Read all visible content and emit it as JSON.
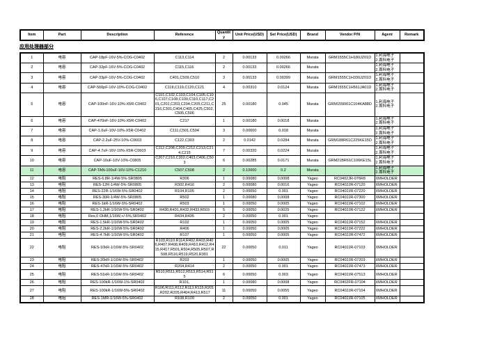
{
  "section_title": "应用处理器部分",
  "colors": {
    "row_highlight": "#c6efce",
    "grid_line": "#000000"
  },
  "header": {
    "columns": [
      "Item",
      "Part",
      "Description",
      "Reference",
      "Quantity",
      "Unit Price(USD)",
      "Set Price(USD)",
      "Brand",
      "Vendor P/N",
      "Agent",
      "Remark"
    ]
  },
  "rows": [
    {
      "item": "1",
      "part": "电容",
      "description": "CAP-18pF-16V-5%-COG-C0402",
      "reference": "C113,C114",
      "quantity": "2",
      "unit_price": "0.00133",
      "set_price": "0.00266",
      "brand": "Murata",
      "vendor_pn": "GRM1555C1H180JZ01D",
      "agent": "1.利海电子\n2.首科电子",
      "remark": "",
      "highlight": false
    },
    {
      "item": "2",
      "part": "电容",
      "description": "CAP-32pF-16V-5%-COG-C0402",
      "reference": "C115,C116",
      "quantity": "2",
      "unit_price": "0.00133",
      "set_price": "0.00266",
      "brand": "Murata",
      "vendor_pn": "",
      "agent": "1.利海电子\n2.首科电子",
      "remark": "",
      "highlight": false
    },
    {
      "item": "3",
      "part": "电容",
      "description": "CAP-33pF-16V-5%-COG-C0402",
      "reference": "C401,C509,C510",
      "quantity": "3",
      "unit_price": "0.00133",
      "set_price": "0.00399",
      "brand": "Murata",
      "vendor_pn": "GRM1555C1H330JZ01D",
      "agent": "1.利海电子\n2.首科电子",
      "remark": "",
      "highlight": false
    },
    {
      "item": "4",
      "part": "电容",
      "description": "CAP-560pF-16V-10%-COG-C0402",
      "reference": "C118,C119,C120,C121",
      "quantity": "4",
      "unit_price": "0.00310",
      "set_price": "0.0124",
      "brand": "Murata",
      "vendor_pn": "GRM1555C1H561JA01D",
      "agent": "1.利海电子\n2.首科电子",
      "remark": "",
      "highlight": false
    },
    {
      "item": "5",
      "part": "电容",
      "description": "CAP-100nF-16V-10%-X5R-C0402",
      "reference": "C101,C102,C103,C104,C105,C106,C107,C108,C109,C110,C117,C201,C202,C203,C204,C205,C211,C216,C301,C404,C405,C425,C502,C505,C506",
      "quantity": "25",
      "unit_price": "0.00180",
      "set_price": "0.045",
      "brand": "Murata",
      "vendor_pn": "GRM155R61C104KA88D",
      "agent": "1.利海电子\n2.首科电子",
      "remark": "",
      "highlight": false
    },
    {
      "item": "6",
      "part": "电容",
      "description": "CAP-470nF-16V-10%-X5R-C0402",
      "reference": "C217",
      "quantity": "1",
      "unit_price": "0.00180",
      "set_price": "0.0018",
      "brand": "Murata",
      "vendor_pn": "",
      "agent": "1.利海电子\n2.首科电子",
      "remark": "",
      "highlight": false
    },
    {
      "item": "7",
      "part": "电容",
      "description": "CAP-1.0uF-10V-10%-X5R-C0402",
      "reference": "C111,C501,C504",
      "quantity": "3",
      "unit_price": "0.00600",
      "set_price": "0.018",
      "brand": "Murata",
      "vendor_pn": "",
      "agent": "1.利海电子\n2.首科电子",
      "remark": "",
      "highlight": false
    },
    {
      "item": "8",
      "part": "电容",
      "description": "CAP-2.2uF-25V-10%-C0603",
      "reference": "C122,C303",
      "quantity": "2",
      "unit_price": "0.0142",
      "set_price": "0.0284",
      "brand": "Murata",
      "vendor_pn": "GRM188R61C225KE15D",
      "agent": "1.利海电子\n2.首科电子",
      "remark": "",
      "highlight": false
    },
    {
      "item": "9",
      "part": "电容",
      "description": "CAP-4.7uF-16V-10%-X5R-C0603",
      "reference": "C112,C208,C209,C212,C213,C214,C215",
      "quantity": "7",
      "unit_price": "0.00320",
      "set_price": "0.0224",
      "brand": "Murata",
      "vendor_pn": "",
      "agent": "1.利海电子\n2.首科电子",
      "remark": "",
      "highlight": false
    },
    {
      "item": "10",
      "part": "电容",
      "description": "CAP-10uF-10V-10%-C0805",
      "reference": "C207,C210,C302,C403,C406,C503",
      "quantity": "6",
      "unit_price": "0.00285",
      "set_price": "0.0171",
      "brand": "Murata",
      "vendor_pn": "GRM21BR61C106KE15L",
      "agent": "1.利海电子\n2.首科电子",
      "remark": "",
      "highlight": false
    },
    {
      "item": "11",
      "part": "电容",
      "description": "CAP-TAN-100uF-16V-10%-C1210",
      "reference": "C507,C508",
      "quantity": "2",
      "unit_price": "0.10000",
      "set_price": "0.2",
      "brand": "Murata",
      "vendor_pn": "",
      "agent": "1.利海电子\n2.首科电子",
      "remark": "",
      "highlight": true
    },
    {
      "item": "12",
      "part": "电阻",
      "description": "RES-6.8R-1/4W-5%-SR0805",
      "reference": "R306",
      "quantity": "1",
      "unit_price": "0.00080",
      "set_price": "0.0008",
      "brand": "Yageo",
      "vendor_pn": "RC0402JR-076R8",
      "agent": "XMHOLDER",
      "remark": "",
      "highlight": false
    },
    {
      "item": "13",
      "part": "电阻",
      "description": "RES-12R-1/4W-5%-SR0805",
      "reference": "R302,R416",
      "quantity": "2",
      "unit_price": "0.00080",
      "set_price": "0.0016",
      "brand": "Yageo",
      "vendor_pn": "RC0402JR-07120",
      "agent": "XMHOLDER",
      "remark": "",
      "highlight": false
    },
    {
      "item": "14",
      "part": "电阻",
      "description": "RES-22R-1/16W-5%-SR0402",
      "reference": "R104,R105",
      "quantity": "2",
      "unit_price": "0.00050",
      "set_price": "0.001",
      "brand": "Yageo",
      "vendor_pn": "RC0402JR-07220",
      "agent": "XMHOLDER",
      "remark": "",
      "highlight": false
    },
    {
      "item": "15",
      "part": "电阻",
      "description": "RES-30R-1/4W-5%-SR0805",
      "reference": "R502",
      "quantity": "1",
      "unit_price": "0.00080",
      "set_price": "0.0008",
      "brand": "Yageo",
      "vendor_pn": "RC0402JR-07300",
      "agent": "XMHOLDER",
      "remark": "",
      "highlight": false
    },
    {
      "item": "16",
      "part": "电阻",
      "description": "RES-1kR-1/16W-5%-SR0402",
      "reference": "R503",
      "quantity": "1",
      "unit_price": "0.00050",
      "set_price": "0.0005",
      "brand": "Yageo",
      "vendor_pn": "RC0402JR-07102",
      "agent": "XMHOLDER",
      "remark": "",
      "highlight": false
    },
    {
      "item": "17",
      "part": "电阻",
      "description": "RES-1.2kR-1/16W-5%-SR0402",
      "reference": "R430,R431,R432,R433,R503",
      "quantity": "5",
      "unit_price": "0.00050",
      "set_price": "0.0025",
      "brand": "Yageo",
      "vendor_pn": "RC0402JR-07122",
      "agent": "XMHOLDER",
      "remark": "",
      "highlight": false
    },
    {
      "item": "18",
      "part": "电阻",
      "description": "Res,0 OHM,1/16W,+/-5%,SR0402",
      "reference": "R434,R435",
      "quantity": "2",
      "unit_price": "0.00050",
      "set_price": "0.001",
      "brand": "Yageo",
      "vendor_pn": "",
      "agent": "",
      "remark": "",
      "highlight": false
    },
    {
      "item": "19",
      "part": "电阻",
      "description": "RES-1.5kR-1/16W-5%-SR0402",
      "reference": "R102",
      "quantity": "1",
      "unit_price": "0.00050",
      "set_price": "0.0005",
      "brand": "Yageo",
      "vendor_pn": "RC0402JR-07152",
      "agent": "XMHOLDER",
      "remark": "",
      "highlight": false
    },
    {
      "item": "20",
      "part": "电阻",
      "description": "RES-2.2kR-1/16W-5%-SR0402",
      "reference": "R406",
      "quantity": "1",
      "unit_price": "0.00050",
      "set_price": "0.0005",
      "brand": "Yageo",
      "vendor_pn": "RC0402JR-07222",
      "agent": "XMHOLDER",
      "remark": "",
      "highlight": false
    },
    {
      "item": "21",
      "part": "电阻",
      "description": "RES-4.7kR-1/16W-5%-SR0402",
      "reference": "R107",
      "quantity": "1",
      "unit_price": "0.00050",
      "set_price": "0.0005",
      "brand": "Yageo",
      "vendor_pn": "RC0402JR-07472",
      "agent": "XMHOLDER",
      "remark": "",
      "highlight": false
    },
    {
      "item": "22",
      "part": "电阻",
      "description": "RES-10kR-1/16W-5%-SR0402",
      "reference": "R103,R110,R114,R402,R403,R406,R407,R408,R409,R410,R412,R415,R417,R501,R504,R505,R507,R508,R516,R519,R520,R301",
      "quantity": "22",
      "unit_price": "0.00050",
      "set_price": "0.011",
      "brand": "Yageo",
      "vendor_pn": "RC0402JR-07103",
      "agent": "XMHOLDER",
      "remark": "",
      "highlight": false
    },
    {
      "item": "23",
      "part": "电阻",
      "description": "RES-20kR-1/16W-5%-SR0402",
      "reference": "R203",
      "quantity": "1",
      "unit_price": "0.00050",
      "set_price": "0.0005",
      "brand": "Yageo",
      "vendor_pn": "RC0402JR-07203",
      "agent": "XMHOLDER",
      "remark": "",
      "highlight": false
    },
    {
      "item": "24",
      "part": "电阻",
      "description": "RES-47kR-1/16W-5%-SR0402",
      "reference": "R204,R414",
      "quantity": "2",
      "unit_price": "0.00050",
      "set_price": "0.001",
      "brand": "Yageo",
      "vendor_pn": "RC0402JR-07473",
      "agent": "XMHOLDER",
      "remark": "",
      "highlight": false
    },
    {
      "item": "25",
      "part": "电阻",
      "description": "RES-51kR-1/16W-5%-SR0402",
      "reference": "R510,R511,R512,R513,R514,R515",
      "quantity": "6",
      "unit_price": "0.00050",
      "set_price": "0.003",
      "brand": "Yageo",
      "vendor_pn": "RC0402JR-07513",
      "agent": "XMHOLDER",
      "remark": "",
      "highlight": false
    },
    {
      "item": "26",
      "part": "电阻",
      "description": "RES-100kR-1/16W-1%-SR0402",
      "reference": "R101,",
      "quantity": "1",
      "unit_price": "0.00080",
      "set_price": "0.0008",
      "brand": "Yageo",
      "vendor_pn": "RC0402FR-07104",
      "agent": "XMHOLDER",
      "remark": "",
      "highlight": false
    },
    {
      "item": "27",
      "part": "电阻",
      "description": "RES-100kR-1/16W-5%-SR0402",
      "reference": "R106,R111,R112,R113,R115,R201,R202,R205,R404,R413,R517",
      "quantity": "11",
      "unit_price": "0.00050",
      "set_price": "0.0055",
      "brand": "Yageo",
      "vendor_pn": "RC0402JR-07104",
      "agent": "XMHOLDER",
      "remark": "",
      "highlight": false
    },
    {
      "item": "28",
      "part": "电阻",
      "description": "RES-1MR-1/16W-5%-SR0402",
      "reference": "R108,R109",
      "quantity": "2",
      "unit_price": "0.00050",
      "set_price": "0.001",
      "brand": "Yageo",
      "vendor_pn": "RC0402JR-07105",
      "agent": "XMHOLDER",
      "remark": "",
      "highlight": false
    }
  ]
}
